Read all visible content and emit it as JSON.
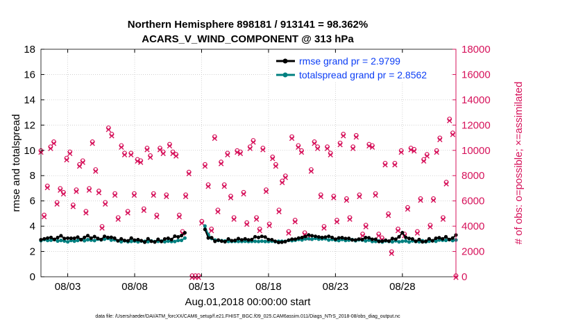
{
  "chart_data": {
    "type": "line",
    "title_line1": "Northern Hemisphere 898181 / 913141 = 98.362%",
    "title_line2": "ACARS_V_WIND_COMPONENT @ 313 hPa",
    "xlabel": "Aug.01,2018 00:00:00 start",
    "ylabel_left": "rmse and totalspread",
    "ylabel_right": "# of obs: o=possible; ×=assimilated",
    "footnote": "data file: /Users/raeder/DAI/ATM_forcXX/CAM6_setup/f.e21.FHIST_BGC.f09_025.CAM6assim.011/Diags_NTrS_2018-08/obs_diag_output.nc",
    "xlim_days": [
      0,
      31
    ],
    "ylim_left": [
      0,
      18
    ],
    "ylim_right": [
      0,
      18000
    ],
    "x_ticks": [
      {
        "day": 2,
        "label": "08/03"
      },
      {
        "day": 7,
        "label": "08/08"
      },
      {
        "day": 12,
        "label": "08/13"
      },
      {
        "day": 17,
        "label": "08/18"
      },
      {
        "day": 22,
        "label": "08/23"
      },
      {
        "day": 27,
        "label": "08/28"
      }
    ],
    "y_ticks_left": [
      "0",
      "2",
      "4",
      "6",
      "8",
      "10",
      "12",
      "14",
      "16",
      "18"
    ],
    "y_ticks_right": [
      "0",
      "2000",
      "4000",
      "6000",
      "8000",
      "10000",
      "12000",
      "14000",
      "16000",
      "18000"
    ],
    "legend": [
      {
        "name": "rmse grand pr = 2.9799",
        "color": "#000000"
      },
      {
        "name": "totalspread grand pr = 2.8562",
        "color": "#008080"
      }
    ],
    "colors": {
      "rmse": "#000000",
      "spread": "#008080",
      "obs": "#d6115a",
      "right_axis": "#d6115a",
      "legend_text": "#0b3df5"
    },
    "gap_days": [
      10.75,
      12.25
    ],
    "rmse_samples": [
      {
        "day": 0,
        "value": 2.9
      },
      {
        "day": 0.5,
        "value": 3.1
      },
      {
        "day": 1,
        "value": 3.0
      },
      {
        "day": 1.5,
        "value": 3.2
      },
      {
        "day": 2,
        "value": 3.0
      },
      {
        "day": 2.5,
        "value": 3.1
      },
      {
        "day": 3,
        "value": 3.0
      },
      {
        "day": 3.5,
        "value": 3.2
      },
      {
        "day": 4,
        "value": 3.1
      },
      {
        "day": 4.5,
        "value": 3.0
      },
      {
        "day": 5,
        "value": 3.2
      },
      {
        "day": 5.5,
        "value": 3.0
      },
      {
        "day": 6,
        "value": 2.9
      },
      {
        "day": 6.5,
        "value": 2.9
      },
      {
        "day": 7,
        "value": 3.0
      },
      {
        "day": 7.5,
        "value": 2.8
      },
      {
        "day": 8,
        "value": 2.9
      },
      {
        "day": 8.5,
        "value": 2.8
      },
      {
        "day": 9,
        "value": 2.9
      },
      {
        "day": 9.5,
        "value": 3.0
      },
      {
        "day": 10,
        "value": 3.1
      },
      {
        "day": 10.5,
        "value": 3.3
      },
      {
        "day": 12.25,
        "value": 3.8
      },
      {
        "day": 12.5,
        "value": 3.1
      },
      {
        "day": 13,
        "value": 2.9
      },
      {
        "day": 13.5,
        "value": 2.8
      },
      {
        "day": 14,
        "value": 2.9
      },
      {
        "day": 14.5,
        "value": 2.9
      },
      {
        "day": 15,
        "value": 3.0
      },
      {
        "day": 15.5,
        "value": 2.9
      },
      {
        "day": 16,
        "value": 3.1
      },
      {
        "day": 16.5,
        "value": 3.2
      },
      {
        "day": 17,
        "value": 3.0
      },
      {
        "day": 17.5,
        "value": 2.8
      },
      {
        "day": 18,
        "value": 2.7
      },
      {
        "day": 18.5,
        "value": 2.9
      },
      {
        "day": 19,
        "value": 3.0
      },
      {
        "day": 19.5,
        "value": 3.1
      },
      {
        "day": 20,
        "value": 3.3
      },
      {
        "day": 20.5,
        "value": 3.2
      },
      {
        "day": 21,
        "value": 3.1
      },
      {
        "day": 21.5,
        "value": 3.2
      },
      {
        "day": 22,
        "value": 3.0
      },
      {
        "day": 22.5,
        "value": 3.1
      },
      {
        "day": 23,
        "value": 3.0
      },
      {
        "day": 23.5,
        "value": 2.9
      },
      {
        "day": 24,
        "value": 3.0
      },
      {
        "day": 24.5,
        "value": 3.1
      },
      {
        "day": 25,
        "value": 2.9
      },
      {
        "day": 25.5,
        "value": 2.8
      },
      {
        "day": 26,
        "value": 2.9
      },
      {
        "day": 26.5,
        "value": 3.0
      },
      {
        "day": 27,
        "value": 3.4
      },
      {
        "day": 27.5,
        "value": 3.0
      },
      {
        "day": 28,
        "value": 2.9
      },
      {
        "day": 28.5,
        "value": 2.8
      },
      {
        "day": 29,
        "value": 2.9
      },
      {
        "day": 29.5,
        "value": 3.0
      },
      {
        "day": 30,
        "value": 3.1
      },
      {
        "day": 30.5,
        "value": 3.0
      },
      {
        "day": 31,
        "value": 3.2
      }
    ],
    "spread_samples": [
      {
        "day": 0,
        "value": 2.9
      },
      {
        "day": 1,
        "value": 2.9
      },
      {
        "day": 2,
        "value": 2.8
      },
      {
        "day": 3,
        "value": 2.9
      },
      {
        "day": 4,
        "value": 2.9
      },
      {
        "day": 5,
        "value": 3.0
      },
      {
        "day": 6,
        "value": 2.8
      },
      {
        "day": 7,
        "value": 2.8
      },
      {
        "day": 8,
        "value": 2.8
      },
      {
        "day": 9,
        "value": 2.8
      },
      {
        "day": 10,
        "value": 2.8
      },
      {
        "day": 10.5,
        "value": 2.9
      },
      {
        "day": 12.25,
        "value": 4.0
      },
      {
        "day": 12.6,
        "value": 3.1
      },
      {
        "day": 13,
        "value": 2.9
      },
      {
        "day": 14,
        "value": 2.8
      },
      {
        "day": 15,
        "value": 2.8
      },
      {
        "day": 16,
        "value": 2.8
      },
      {
        "day": 17,
        "value": 2.8
      },
      {
        "day": 18,
        "value": 2.8
      },
      {
        "day": 19,
        "value": 2.9
      },
      {
        "day": 20,
        "value": 3.0
      },
      {
        "day": 21,
        "value": 3.0
      },
      {
        "day": 22,
        "value": 2.9
      },
      {
        "day": 23,
        "value": 2.9
      },
      {
        "day": 24,
        "value": 2.9
      },
      {
        "day": 25,
        "value": 2.8
      },
      {
        "day": 26,
        "value": 2.8
      },
      {
        "day": 27,
        "value": 2.8
      },
      {
        "day": 28,
        "value": 2.8
      },
      {
        "day": 29,
        "value": 2.8
      },
      {
        "day": 30,
        "value": 2.9
      },
      {
        "day": 31,
        "value": 2.9
      }
    ],
    "obs_counts": [
      9900,
      4800,
      7100,
      10200,
      10600,
      5800,
      6900,
      6600,
      9300,
      9800,
      5600,
      6800,
      8800,
      9100,
      5100,
      6900,
      10600,
      8400,
      6700,
      3900,
      5800,
      11700,
      11200,
      6500,
      4600,
      10300,
      9700,
      5100,
      9700,
      6500,
      9200,
      9100,
      5300,
      10100,
      9500,
      6500,
      4800,
      10100,
      9800,
      6400,
      10400,
      9800,
      9600,
      4800,
      3500,
      6400,
      8200,
      0,
      0,
      0,
      4300,
      8800,
      7200,
      3700,
      11000,
      5200,
      9000,
      7200,
      9700,
      6300,
      4600,
      9900,
      9800,
      6600,
      4200,
      10200,
      10700,
      4600,
      3700,
      10100,
      6800,
      4100,
      9400,
      8800,
      5200,
      7500,
      7900,
      3500,
      11000,
      4400,
      10300,
      9900,
      3400,
      3100,
      8400,
      10600,
      10200,
      6400,
      3900,
      10200,
      9700,
      6300,
      4400,
      10500,
      11200,
      6100,
      4600,
      10200,
      11100,
      6400,
      3300,
      4000,
      10400,
      10300,
      6500,
      3300,
      3000,
      8900,
      4900,
      1900,
      8900,
      3700,
      9900,
      3300,
      5400,
      10100,
      10000,
      3500,
      6100,
      9200,
      9600,
      4000,
      6100,
      9900,
      10900,
      4600,
      7400,
      12400,
      11300,
      0
    ]
  }
}
